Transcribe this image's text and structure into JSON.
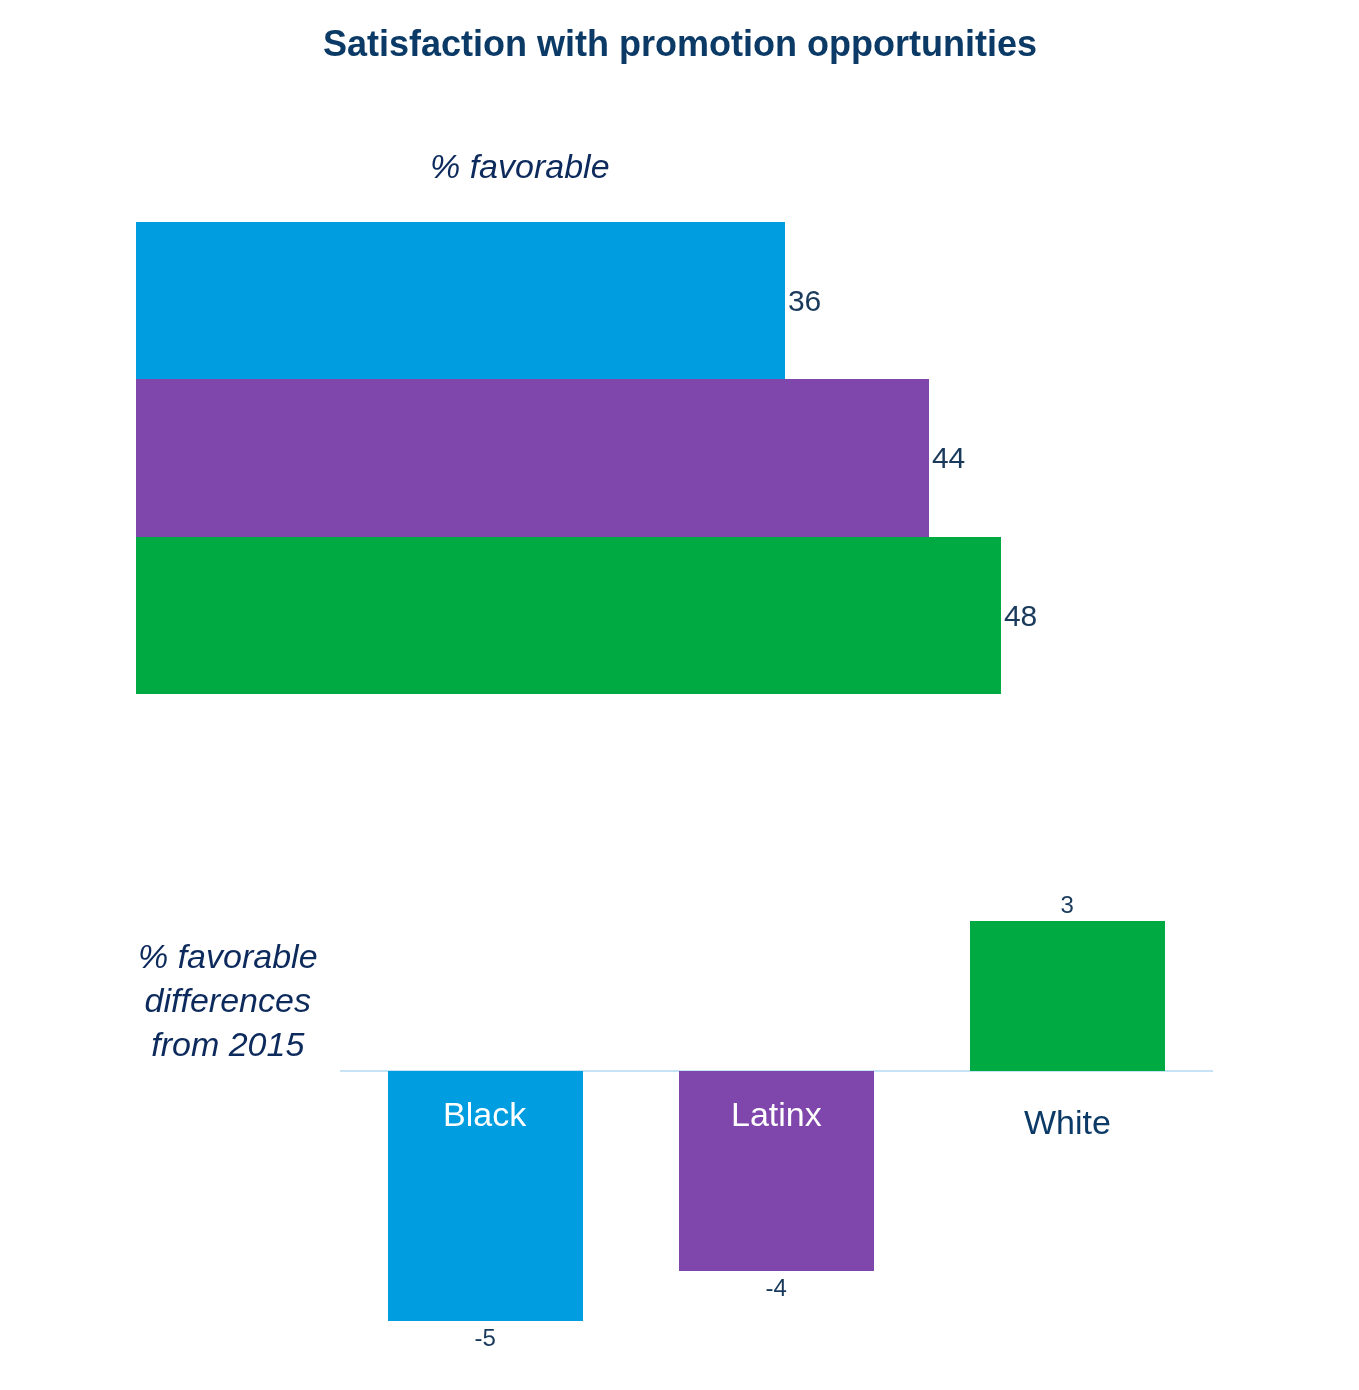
{
  "chart_data": [
    {
      "type": "bar",
      "title": "Satisfaction with promotion opportunities",
      "subtitle": "% favorable",
      "orientation": "horizontal",
      "categories": [
        null,
        null,
        null
      ],
      "values": [
        36,
        44,
        48
      ],
      "colors": [
        "#009de0",
        "#7f47ab",
        "#00aa43"
      ],
      "data_labels": true
    },
    {
      "type": "bar",
      "ylabel": "% favorable differences from 2015",
      "categories": [
        "Black",
        "Latinx",
        "White"
      ],
      "values": [
        -5,
        -4,
        3
      ],
      "colors": [
        "#009de0",
        "#7f47ab",
        "#00aa43"
      ],
      "data_labels": true
    }
  ]
}
